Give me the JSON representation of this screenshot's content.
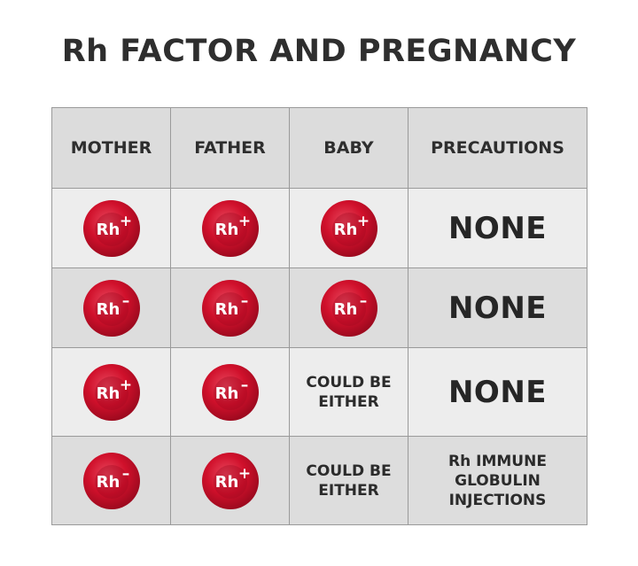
{
  "title": "Rh FACTOR AND PREGNANCY",
  "headers": [
    "MOTHER",
    "FATHER",
    "BABY",
    "PRECAUTIONS"
  ],
  "rows": [
    {
      "mother": "Rh+",
      "father": "Rh+",
      "baby": "Rh+",
      "precautions": "NONE"
    },
    {
      "mother": "Rh-",
      "father": "Rh-",
      "baby": "Rh-",
      "precautions": "NONE"
    },
    {
      "mother": "Rh+",
      "father": "Rh-",
      "baby": [
        "COULD BE",
        "EITHER"
      ],
      "precautions": "NONE"
    },
    {
      "mother": "Rh-",
      "father": "Rh+",
      "baby": [
        "COULD BE",
        "EITHER"
      ],
      "precautions": [
        "Rh IMMUNE",
        "GLOBULIN",
        "INJECTIONS"
      ]
    }
  ],
  "colors": {
    "cell_red": "#d0102b",
    "cell_red_dark": "#9e0a1f",
    "cell_highlight": "#e8485e"
  },
  "symbols": {
    "rh_label": "Rh"
  }
}
